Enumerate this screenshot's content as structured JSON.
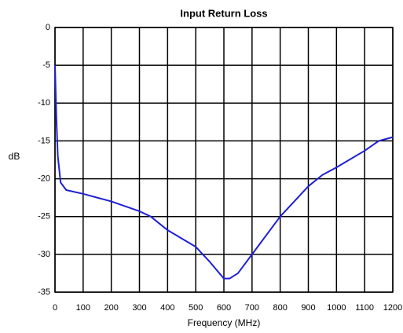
{
  "chart_data": {
    "type": "line",
    "title": "Input Return Loss",
    "x_label": "Frequency (MHz)",
    "y_label": "dB",
    "x": [
      0,
      5,
      10,
      20,
      40,
      100,
      200,
      300,
      340,
      400,
      500,
      550,
      600,
      620,
      650,
      700,
      800,
      900,
      950,
      1000,
      1100,
      1150,
      1200
    ],
    "series": [
      {
        "name": "Input Return Loss",
        "color": "#1f1fd6",
        "values": [
          -5,
          -12,
          -17,
          -20.5,
          -21.5,
          -22,
          -23,
          -24.3,
          -25,
          -26.8,
          -29,
          -31,
          -33.2,
          -33.2,
          -32.5,
          -30,
          -25,
          -21,
          -19.5,
          -18.5,
          -16.3,
          -15,
          -14.5
        ]
      }
    ],
    "xlim": [
      0,
      1200
    ],
    "xticks": [
      0,
      100,
      200,
      300,
      400,
      500,
      600,
      700,
      800,
      900,
      1000,
      1100,
      1200
    ],
    "ylim": [
      -35,
      0
    ],
    "yticks": [
      -35,
      -30,
      -25,
      -20,
      -15,
      -10,
      -5,
      0
    ],
    "grid": true
  }
}
